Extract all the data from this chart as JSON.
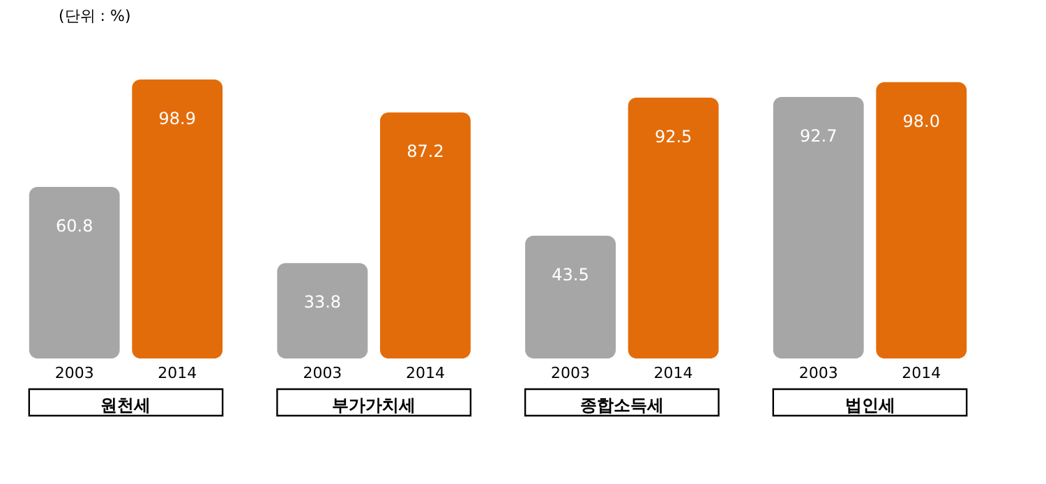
{
  "chart_data": {
    "type": "bar",
    "annotations": [
      "(단위 : %)"
    ],
    "categories": [
      "원천세",
      "부가가치세",
      "종합소득세",
      "법인세"
    ],
    "series": [
      {
        "name": "2003",
        "color": "#a6a6a6",
        "values": [
          60.8,
          33.8,
          43.5,
          92.7
        ],
        "value_labels": [
          "60.8",
          "33.8",
          "43.5",
          "92.7"
        ]
      },
      {
        "name": "2014",
        "color": "#e36c0a",
        "values": [
          98.9,
          87.2,
          92.5,
          98.0
        ],
        "value_labels": [
          "98.9",
          "87.2",
          "92.5",
          "98.0"
        ]
      }
    ],
    "grid": false
  }
}
